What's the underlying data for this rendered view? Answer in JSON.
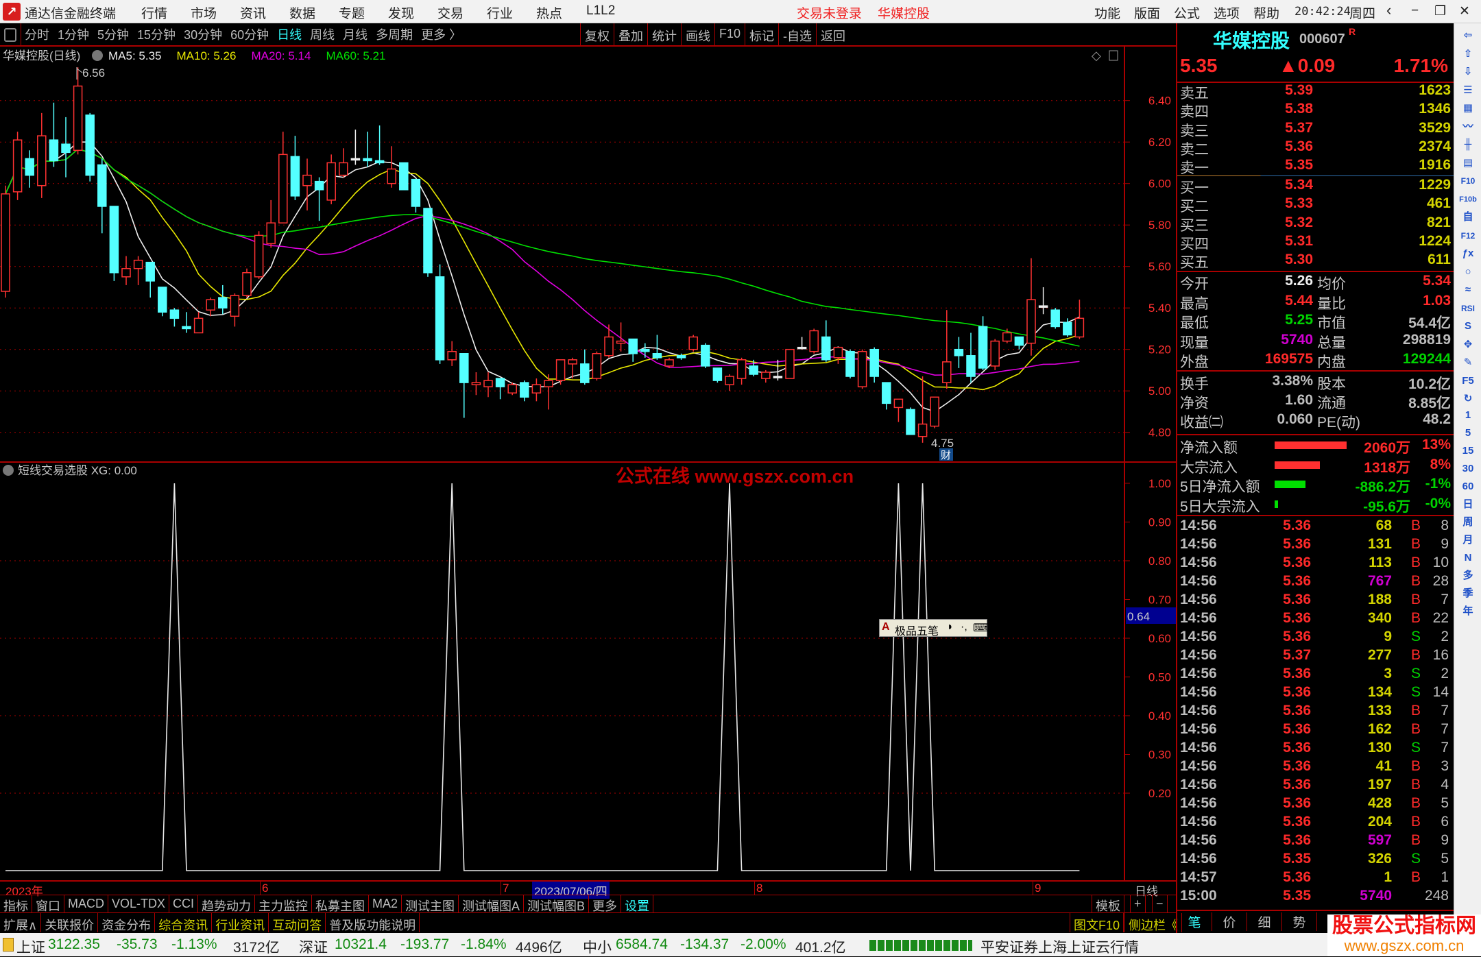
{
  "titlebar": {
    "app_name": "通达信金融终端",
    "menu": [
      "行情",
      "市场",
      "资讯",
      "数据",
      "专题",
      "发现",
      "交易",
      "行业",
      "热点",
      "L1L2"
    ],
    "login_status": "交易未登录",
    "stock_name": "华媒控股",
    "right_menu": [
      "功能",
      "版面",
      "公式",
      "选项",
      "帮助"
    ],
    "clock": "20:42:24",
    "weekday": "周四"
  },
  "periodbar": {
    "periods": [
      "分时",
      "1分钟",
      "5分钟",
      "15分钟",
      "30分钟",
      "60分钟",
      "日线",
      "周线",
      "月线",
      "多周期",
      "更多 〉"
    ],
    "active": "日线",
    "tools": [
      "复权",
      "叠加",
      "统计",
      "画线",
      "F10",
      "标记",
      "-自选",
      "返回"
    ]
  },
  "main_chart": {
    "title": "华媒控股(日线)",
    "ma": [
      {
        "label": "MA5: 5.35",
        "color": "#eeeeee"
      },
      {
        "label": "MA10: 5.26",
        "color": "#e8e800"
      },
      {
        "label": "MA20: 5.14",
        "color": "#e000e0"
      },
      {
        "label": "MA60: 5.21",
        "color": "#00e000"
      }
    ],
    "y_ticks": [
      "6.40",
      "6.20",
      "6.00",
      "5.80",
      "5.60",
      "5.40",
      "5.20",
      "5.00",
      "4.80"
    ],
    "high_mark": "6.56",
    "low_mark": "4.75",
    "finance_badge": "财",
    "up_color": "#ff3232",
    "down_color": "#54ffff",
    "candles_ohlc": [
      [
        5.48,
        5.99,
        5.45,
        5.95
      ],
      [
        5.96,
        6.25,
        5.92,
        6.21
      ],
      [
        6.12,
        6.16,
        5.98,
        6.04
      ],
      [
        5.99,
        6.34,
        5.93,
        6.23
      ],
      [
        6.21,
        6.39,
        6.08,
        6.11
      ],
      [
        6.19,
        6.32,
        6.03,
        6.15
      ],
      [
        6.16,
        6.56,
        6.14,
        6.47
      ],
      [
        6.33,
        6.34,
        6.01,
        6.04
      ],
      [
        6.09,
        6.12,
        5.76,
        5.89
      ],
      [
        5.89,
        5.89,
        5.53,
        5.57
      ],
      [
        5.55,
        5.65,
        5.51,
        5.59
      ],
      [
        5.59,
        5.65,
        5.51,
        5.63
      ],
      [
        5.62,
        5.62,
        5.45,
        5.53
      ],
      [
        5.5,
        5.5,
        5.36,
        5.38
      ],
      [
        5.39,
        5.4,
        5.31,
        5.35
      ],
      [
        5.31,
        5.38,
        5.28,
        5.3
      ],
      [
        5.28,
        5.38,
        5.28,
        5.35
      ],
      [
        5.39,
        5.45,
        5.36,
        5.44
      ],
      [
        5.45,
        5.51,
        5.37,
        5.4
      ],
      [
        5.36,
        5.47,
        5.31,
        5.46
      ],
      [
        5.46,
        5.59,
        5.45,
        5.57
      ],
      [
        5.55,
        5.77,
        5.54,
        5.75
      ],
      [
        5.71,
        5.92,
        5.69,
        5.81
      ],
      [
        5.81,
        6.25,
        5.81,
        6.14
      ],
      [
        6.13,
        6.23,
        5.92,
        5.94
      ],
      [
        5.99,
        6.12,
        5.87,
        6.04
      ],
      [
        6.01,
        6.03,
        5.82,
        5.97
      ],
      [
        5.92,
        6.14,
        5.9,
        6.1
      ],
      [
        6.04,
        6.17,
        6.03,
        6.1
      ],
      [
        6.12,
        6.26,
        6.09,
        6.12
      ],
      [
        6.12,
        6.25,
        6.08,
        6.11
      ],
      [
        6.11,
        6.28,
        6.09,
        6.1
      ],
      [
        6.0,
        6.18,
        5.98,
        6.07
      ],
      [
        6.1,
        6.1,
        5.97,
        5.97
      ],
      [
        6.02,
        6.02,
        5.86,
        5.89
      ],
      [
        5.88,
        5.88,
        5.55,
        5.57
      ],
      [
        5.55,
        5.61,
        5.13,
        5.15
      ],
      [
        5.15,
        5.24,
        5.12,
        5.19
      ],
      [
        5.18,
        5.18,
        4.87,
        5.04
      ],
      [
        5.03,
        5.09,
        4.98,
        5.04
      ],
      [
        5.02,
        5.09,
        4.97,
        5.05
      ],
      [
        5.06,
        5.06,
        4.96,
        5.02
      ],
      [
        4.99,
        5.04,
        4.98,
        5.03
      ],
      [
        5.04,
        5.05,
        4.95,
        4.97
      ],
      [
        4.99,
        5.06,
        4.95,
        5.03
      ],
      [
        5.02,
        5.08,
        4.91,
        5.05
      ],
      [
        5.05,
        5.15,
        5.03,
        5.15
      ],
      [
        5.13,
        5.16,
        5.06,
        5.15
      ],
      [
        5.13,
        5.2,
        5.03,
        5.04
      ],
      [
        5.06,
        5.19,
        5.05,
        5.18
      ],
      [
        5.17,
        5.32,
        5.16,
        5.26
      ],
      [
        5.23,
        5.33,
        5.19,
        5.24
      ],
      [
        5.25,
        5.25,
        5.14,
        5.18
      ],
      [
        5.2,
        5.23,
        5.16,
        5.19
      ],
      [
        5.18,
        5.27,
        5.15,
        5.16
      ],
      [
        5.12,
        5.16,
        5.11,
        5.15
      ],
      [
        5.17,
        5.18,
        5.15,
        5.16
      ],
      [
        5.2,
        5.27,
        5.19,
        5.26
      ],
      [
        5.22,
        5.23,
        5.11,
        5.12
      ],
      [
        5.11,
        5.11,
        5.04,
        5.05
      ],
      [
        5.03,
        5.08,
        5.0,
        5.07
      ],
      [
        5.06,
        5.16,
        5.03,
        5.15
      ],
      [
        5.12,
        5.15,
        5.07,
        5.08
      ],
      [
        5.06,
        5.1,
        5.04,
        5.09
      ],
      [
        5.07,
        5.15,
        5.05,
        5.07
      ],
      [
        5.06,
        5.2,
        5.06,
        5.2
      ],
      [
        5.21,
        5.26,
        5.2,
        5.21
      ],
      [
        5.19,
        5.3,
        5.18,
        5.29
      ],
      [
        5.26,
        5.34,
        5.14,
        5.15
      ],
      [
        5.16,
        5.21,
        5.13,
        5.21
      ],
      [
        5.19,
        5.2,
        5.06,
        5.07
      ],
      [
        5.02,
        5.2,
        5.01,
        5.19
      ],
      [
        5.2,
        5.21,
        5.04,
        5.07
      ],
      [
        5.04,
        5.04,
        4.91,
        4.94
      ],
      [
        4.92,
        4.96,
        4.85,
        4.96
      ],
      [
        4.91,
        4.92,
        4.79,
        4.79
      ],
      [
        4.78,
        5.07,
        4.75,
        4.84
      ],
      [
        4.83,
        4.97,
        4.82,
        4.97
      ],
      [
        5.04,
        5.39,
        5.01,
        5.14
      ],
      [
        5.2,
        5.26,
        5.11,
        5.17
      ],
      [
        5.17,
        5.28,
        5.04,
        5.07
      ],
      [
        5.31,
        5.36,
        5.1,
        5.11
      ],
      [
        5.12,
        5.25,
        5.1,
        5.24
      ],
      [
        5.24,
        5.3,
        5.23,
        5.28
      ],
      [
        5.26,
        5.26,
        5.2,
        5.22
      ],
      [
        5.23,
        5.64,
        5.17,
        5.44
      ],
      [
        5.41,
        5.5,
        5.37,
        5.41
      ],
      [
        5.39,
        5.4,
        5.3,
        5.31
      ],
      [
        5.33,
        5.35,
        5.26,
        5.27
      ],
      [
        5.26,
        5.44,
        5.25,
        5.35
      ]
    ]
  },
  "indicator": {
    "title": "短线交易选股 XG: 0.00",
    "y_ticks": [
      "1.00",
      "0.90",
      "0.80",
      "0.70",
      "0.60",
      "0.50",
      "0.40",
      "0.30",
      "0.20"
    ],
    "cursor_value": "0.64",
    "watermark": "公式在线  www.gszx.com.cn",
    "values": [
      0,
      0,
      0,
      0,
      0,
      0,
      0,
      0,
      0,
      0,
      0,
      0,
      0,
      0,
      1,
      0,
      0,
      0,
      0,
      0,
      0,
      0,
      0,
      0,
      0,
      0,
      0,
      0,
      0,
      0,
      0,
      0,
      0,
      0,
      0,
      0,
      0,
      1,
      0,
      0,
      0,
      0,
      0,
      0,
      0,
      0,
      0,
      0,
      0,
      0,
      0,
      0,
      0,
      0,
      0,
      0,
      0,
      0,
      0,
      0,
      1,
      0,
      0,
      0,
      0,
      0,
      0,
      0,
      0,
      0,
      0,
      0,
      0,
      0,
      1,
      0,
      1,
      0,
      0,
      0,
      0,
      0,
      0,
      0,
      0,
      0,
      0,
      0,
      0,
      0
    ]
  },
  "ime_toolbar": {
    "mode": "A",
    "name": "极品五笔"
  },
  "date_axis": {
    "year": "2023年",
    "m6": "6",
    "m7": "7",
    "cursor_date": "2023/07/06/四",
    "m8": "8",
    "m9": "9",
    "period": "日线"
  },
  "tabs": [
    "指标",
    "窗口",
    "MACD",
    "VOL-TDX",
    "CCI",
    "趋势动力",
    "主力监控",
    "私募主图",
    "MA2",
    "测试主图",
    "测试幅图A",
    "测试幅图B",
    "更多",
    "设置"
  ],
  "tab_right": [
    "模板",
    "+",
    "−"
  ],
  "ext_tabs": [
    {
      "label": "扩展∧",
      "c": "gry"
    },
    {
      "label": "关联报价",
      "c": "gry"
    },
    {
      "label": "资金分布",
      "c": "gry"
    },
    {
      "label": "综合资讯",
      "c": "yel"
    },
    {
      "label": "行业资讯",
      "c": "yel"
    },
    {
      "label": "互动问答",
      "c": "yel"
    },
    {
      "label": "普及版功能说明",
      "c": "gry"
    }
  ],
  "ext_right": [
    "图文F10",
    "侧边栏《"
  ],
  "detail_tabs": [
    "笔",
    "价",
    "细",
    "势"
  ],
  "quote": {
    "name": "华媒控股",
    "code": "000607",
    "flag": "R",
    "price": "5.35",
    "change": "▲0.09",
    "pct": "1.71%",
    "asks": [
      {
        "l": "卖五",
        "p": "5.39",
        "v": "1623"
      },
      {
        "l": "卖四",
        "p": "5.38",
        "v": "1346"
      },
      {
        "l": "卖三",
        "p": "5.37",
        "v": "3529"
      },
      {
        "l": "卖二",
        "p": "5.36",
        "v": "2374"
      },
      {
        "l": "卖一",
        "p": "5.35",
        "v": "1916"
      }
    ],
    "bids": [
      {
        "l": "买一",
        "p": "5.34",
        "v": "1229"
      },
      {
        "l": "买二",
        "p": "5.33",
        "v": "461"
      },
      {
        "l": "买三",
        "p": "5.32",
        "v": "821"
      },
      {
        "l": "买四",
        "p": "5.31",
        "v": "1224"
      },
      {
        "l": "买五",
        "p": "5.30",
        "v": "611"
      }
    ],
    "stats": [
      {
        "l1": "今开",
        "v1": "5.26",
        "c1": "wht",
        "l2": "均价",
        "v2": "5.34",
        "c2": "red"
      },
      {
        "l1": "最高",
        "v1": "5.44",
        "c1": "red",
        "l2": "量比",
        "v2": "1.03",
        "c2": "red"
      },
      {
        "l1": "最低",
        "v1": "5.25",
        "c1": "grn",
        "l2": "市值",
        "v2": "54.4亿",
        "c2": "gry"
      },
      {
        "l1": "现量",
        "v1": "5740",
        "c1": "mag",
        "l2": "总量",
        "v2": "298819",
        "c2": "gry"
      },
      {
        "l1": "外盘",
        "v1": "169575",
        "c1": "red",
        "l2": "内盘",
        "v2": "129244",
        "c2": "grn"
      }
    ],
    "fund": [
      {
        "l1": "换手",
        "v1": "3.38%",
        "l2": "股本",
        "v2": "10.2亿"
      },
      {
        "l1": "净资",
        "v1": "1.60",
        "l2": "流通",
        "v2": "8.85亿"
      },
      {
        "l1": "收益㈡",
        "v1": "0.060",
        "l2": "PE(动)",
        "v2": "48.2"
      }
    ],
    "flows": [
      {
        "l": "净流入额",
        "bar": 1.0,
        "c": "#ff3030",
        "v": "2060万",
        "p": "13%",
        "cls": "red"
      },
      {
        "l": "大宗流入",
        "bar": 0.63,
        "c": "#ff3030",
        "v": "1318万",
        "p": "8%",
        "cls": "red"
      },
      {
        "l": "5日净流入额",
        "bar": 0.43,
        "c": "#00e000",
        "v": "-886.2万",
        "p": "-1%",
        "cls": "grn"
      },
      {
        "l": "5日大宗流入",
        "bar": 0.05,
        "c": "#00e000",
        "v": "-95.6万",
        "p": "-0%",
        "cls": "grn"
      }
    ],
    "ticks": [
      [
        "14:56",
        "5.36",
        "68",
        "B",
        "8"
      ],
      [
        "14:56",
        "5.36",
        "131",
        "B",
        "9"
      ],
      [
        "14:56",
        "5.36",
        "113",
        "B",
        "10"
      ],
      [
        "14:56",
        "5.36",
        "767",
        "B",
        "28"
      ],
      [
        "14:56",
        "5.36",
        "188",
        "B",
        "7"
      ],
      [
        "14:56",
        "5.36",
        "340",
        "B",
        "22"
      ],
      [
        "14:56",
        "5.36",
        "9",
        "S",
        "2"
      ],
      [
        "14:56",
        "5.37",
        "277",
        "B",
        "16"
      ],
      [
        "14:56",
        "5.36",
        "3",
        "S",
        "2"
      ],
      [
        "14:56",
        "5.36",
        "134",
        "S",
        "14"
      ],
      [
        "14:56",
        "5.36",
        "133",
        "B",
        "7"
      ],
      [
        "14:56",
        "5.36",
        "162",
        "B",
        "7"
      ],
      [
        "14:56",
        "5.36",
        "130",
        "S",
        "7"
      ],
      [
        "14:56",
        "5.36",
        "41",
        "B",
        "3"
      ],
      [
        "14:56",
        "5.36",
        "197",
        "B",
        "4"
      ],
      [
        "14:56",
        "5.36",
        "428",
        "B",
        "5"
      ],
      [
        "14:56",
        "5.36",
        "204",
        "B",
        "6"
      ],
      [
        "14:56",
        "5.36",
        "597",
        "B",
        "9"
      ],
      [
        "14:56",
        "5.35",
        "326",
        "S",
        "5"
      ],
      [
        "14:57",
        "5.36",
        "1",
        "B",
        "1"
      ],
      [
        "15:00",
        "5.35",
        "5740",
        "",
        "248"
      ]
    ]
  },
  "sidebar_icons": [
    "back-arrow",
    "up-arrow",
    "down-arrow",
    "quote-list",
    "grid",
    "line-chart",
    "kline",
    "news",
    "F10",
    "F10b",
    "self",
    "F12",
    "fx",
    "circle",
    "wave",
    "RSI",
    "S",
    "move",
    "pencil",
    "F5",
    "refresh",
    "1",
    "5",
    "15",
    "30",
    "60",
    "日",
    "周",
    "月",
    "N",
    "多",
    "季",
    "年"
  ],
  "statusbar": {
    "sh": {
      "name": "上证",
      "v": "3122.35",
      "c": "-35.73",
      "p": "-1.13%",
      "amt": "3172亿"
    },
    "sz": {
      "name": "深证",
      "v": "10321.4",
      "c": "-193.77",
      "p": "-1.84%",
      "amt": "4496亿"
    },
    "zx": {
      "name": "中小",
      "v": "6584.74",
      "c": "-134.37",
      "p": "-2.00%",
      "amt": "401.2亿"
    },
    "server": "平安证券上海上证云行情"
  },
  "watermark_logo": {
    "title": "股票公式指标网",
    "url": "www.gszx.com.cn"
  }
}
